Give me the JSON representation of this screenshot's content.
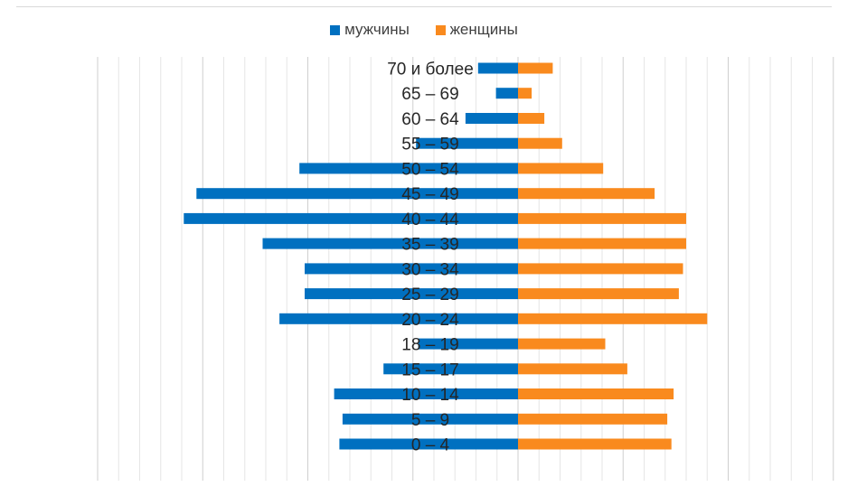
{
  "chart_data": {
    "type": "bar",
    "orientation": "horizontal",
    "layout": "population-pyramid",
    "categories": [
      "0 – 4",
      "5 – 9",
      "10 – 14",
      "15 – 17",
      "18 – 19",
      "20 – 24",
      "25 – 29",
      "30 – 34",
      "35 – 39",
      "40 – 44",
      "45 – 49",
      "50 – 54",
      "55 – 59",
      "60 – 64",
      "65 – 69",
      "70 и более"
    ],
    "series": [
      {
        "name": "мужчины",
        "color": "#0070C0",
        "direction": "left",
        "values": [
          170,
          167,
          175,
          128,
          95,
          227,
          203,
          203,
          243,
          318,
          306,
          208,
          97,
          50,
          21,
          38
        ]
      },
      {
        "name": "женщины",
        "color": "#F98A1E",
        "direction": "right",
        "values": [
          146,
          142,
          148,
          104,
          83,
          180,
          153,
          157,
          160,
          160,
          130,
          81,
          42,
          25,
          13,
          33
        ]
      }
    ],
    "xlim": [
      -400,
      300
    ],
    "grid_step": 20,
    "grid": true,
    "legend": "top-center",
    "title": "",
    "xlabel": "",
    "ylabel": ""
  }
}
